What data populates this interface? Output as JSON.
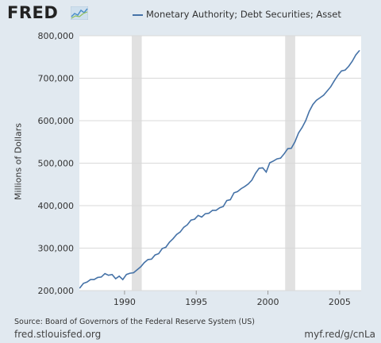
{
  "logo": {
    "text": "FRED",
    "icon": "fred-graph-icon"
  },
  "footer": {
    "source": "Source: Board of Governors of the Federal Reserve System (US)",
    "site": "fred.stlouisfed.org",
    "shortlink": "myf.red/g/cnLa"
  },
  "colors": {
    "line": "#4572a7",
    "recession": "#e1e1e1",
    "plot_bg": "#ffffff",
    "frame_bg": "#e1e9f0",
    "grid": "#d9d9d9"
  },
  "chart_data": {
    "type": "line",
    "series": [
      {
        "name": "Monetary Authority; Debt Securities; Asset",
        "x": [
          1986.88,
          1987.13,
          1987.38,
          1987.63,
          1987.88,
          1988.13,
          1988.38,
          1988.63,
          1988.88,
          1989.13,
          1989.38,
          1989.63,
          1989.88,
          1990.13,
          1990.38,
          1990.63,
          1990.88,
          1991.13,
          1991.38,
          1991.63,
          1991.88,
          1992.13,
          1992.38,
          1992.63,
          1992.88,
          1993.13,
          1993.38,
          1993.63,
          1993.88,
          1994.13,
          1994.38,
          1994.63,
          1994.88,
          1995.13,
          1995.38,
          1995.63,
          1995.88,
          1996.13,
          1996.38,
          1996.63,
          1996.88,
          1997.13,
          1997.38,
          1997.63,
          1997.88,
          1998.13,
          1998.38,
          1998.63,
          1998.88,
          1999.13,
          1999.38,
          1999.63,
          1999.88,
          2000.13,
          2000.38,
          2000.63,
          2000.88,
          2001.13,
          2001.38,
          2001.63,
          2001.88,
          2002.13,
          2002.38,
          2002.63,
          2002.88,
          2003.13,
          2003.38,
          2003.63,
          2003.88,
          2004.13,
          2004.38,
          2004.63,
          2004.88,
          2005.13,
          2005.38,
          2005.63,
          2005.88,
          2006.13,
          2006.38
        ],
        "values": [
          206000,
          217000,
          220000,
          226000,
          226000,
          231000,
          232000,
          240000,
          236000,
          238000,
          228000,
          234000,
          226000,
          238000,
          241000,
          242000,
          249000,
          256000,
          266000,
          273000,
          274000,
          284000,
          287000,
          299000,
          302000,
          314000,
          322000,
          332000,
          338000,
          349000,
          355000,
          366000,
          368000,
          377000,
          373000,
          381000,
          382000,
          389000,
          389000,
          395000,
          398000,
          412000,
          414000,
          430000,
          433000,
          440000,
          445000,
          451000,
          460000,
          476000,
          488000,
          489000,
          479000,
          501000,
          505000,
          510000,
          512000,
          522000,
          534000,
          535000,
          550000,
          571000,
          584000,
          600000,
          622000,
          638000,
          648000,
          654000,
          660000,
          670000,
          680000,
          694000,
          707000,
          717000,
          719000,
          728000,
          740000,
          755000,
          765000
        ]
      }
    ],
    "xlim": [
      1986.85,
      2006.5
    ],
    "ylim": [
      200000,
      800000
    ],
    "xticks": [
      1990,
      1995,
      2000,
      2005
    ],
    "xtick_labels": [
      "1990",
      "1995",
      "2000",
      "2005"
    ],
    "yticks": [
      200000,
      300000,
      400000,
      500000,
      600000,
      700000,
      800000
    ],
    "ytick_labels": [
      "200,000",
      "300,000",
      "400,000",
      "500,000",
      "600,000",
      "700,000",
      "800,000"
    ],
    "ylabel": "Millions of Dollars",
    "xlabel": "",
    "recessions": [
      [
        1990.5,
        1991.2
      ],
      [
        2001.2,
        2001.9
      ]
    ],
    "grid": "horizontal",
    "legend_position": "top"
  }
}
